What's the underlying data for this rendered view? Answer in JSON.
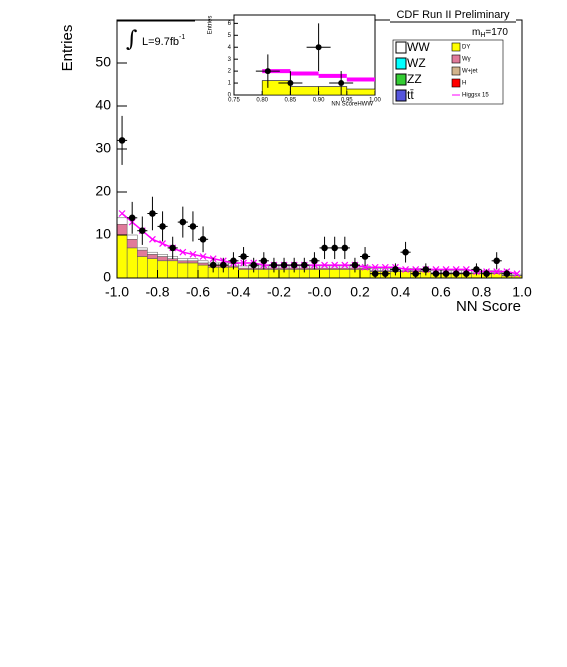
{
  "chart_data": {
    "type": "stacked_histogram",
    "title": "CDF Run II Preliminary",
    "mass_label": {
      "m": "m",
      "sub": "H",
      "rest": "=170"
    },
    "lumi_label": {
      "text": "L=9.7fb",
      "sup": "-1"
    },
    "integral": "∫",
    "ylabel": "Entries",
    "xlabel": "NN Score",
    "xlim": [
      -1.0,
      1.0
    ],
    "ylim": [
      0,
      60
    ],
    "xticks": [
      {
        "value": -1.0,
        "label": "-1.0"
      },
      {
        "value": -0.8,
        "label": "-0.8"
      },
      {
        "value": -0.6,
        "label": "-0.6"
      },
      {
        "value": -0.4,
        "label": "-0.4"
      },
      {
        "value": -0.2,
        "label": "-0.2"
      },
      {
        "value": 0,
        "label": "-0.0"
      },
      {
        "value": 0.2,
        "label": "0.2"
      },
      {
        "value": 0.4,
        "label": "0.4"
      },
      {
        "value": 0.6,
        "label": "0.6"
      },
      {
        "value": 0.8,
        "label": "0.8"
      },
      {
        "value": 1.0,
        "label": "1.0"
      }
    ],
    "yticks": [
      0,
      10,
      20,
      30,
      40,
      50
    ],
    "bins": [
      -1.0,
      -0.95,
      -0.9,
      -0.85,
      -0.8,
      -0.75,
      -0.7,
      -0.65,
      -0.6,
      -0.55,
      -0.5,
      -0.45,
      -0.4,
      -0.35,
      -0.3,
      -0.25,
      -0.2,
      -0.15,
      -0.1,
      -0.05,
      0,
      0.05,
      0.1,
      0.15,
      0.2,
      0.25,
      0.3,
      0.35,
      0.4,
      0.45,
      0.5,
      0.55,
      0.6,
      0.65,
      0.7,
      0.75,
      0.8,
      0.85,
      0.9,
      0.95,
      1.0
    ],
    "series": [
      {
        "name": "DY",
        "color": "#ffff00",
        "values": [
          10,
          7,
          5,
          4.5,
          4,
          4,
          3.5,
          3.5,
          3,
          2.5,
          2.5,
          2.5,
          2,
          2,
          2,
          2,
          2,
          2,
          2,
          2,
          2,
          2,
          2,
          2,
          2,
          1.5,
          1.5,
          1.5,
          1.5,
          1.5,
          1.5,
          1,
          1,
          1,
          1,
          1,
          1,
          1,
          0.5,
          0.5
        ]
      },
      {
        "name": "Wγ",
        "color": "#e07a9a",
        "values": [
          2.5,
          2,
          1.5,
          1,
          1,
          0.5,
          0.5,
          0.5,
          0.5,
          0.5,
          0.5,
          0.3,
          0.3,
          0.3,
          0.3,
          0.3,
          0.3,
          0.3,
          0.3,
          0.3,
          0.3,
          0.3,
          0.3,
          0.3,
          0.3,
          0.2,
          0.2,
          0.2,
          0.2,
          0.2,
          0.2,
          0.2,
          0.2,
          0.2,
          0.2,
          0.2,
          0.2,
          0.2,
          0.2,
          0.1
        ]
      },
      {
        "name": "WW",
        "color": "#ffffff",
        "values": [
          1.5,
          1,
          0.5,
          0.5,
          0.5,
          0.5,
          0.5,
          0.5,
          0.5,
          0.5,
          0.5,
          0.5,
          0.5,
          0.5,
          0.5,
          0.5,
          0.5,
          0.5,
          0.5,
          0.5,
          0.5,
          0.5,
          0.5,
          0.5,
          0.5,
          0.5,
          0.5,
          0.5,
          0.5,
          0.5,
          0.5,
          0.5,
          0.5,
          0.5,
          0.5,
          0.5,
          0.5,
          0.5,
          0.5,
          0.3
        ]
      }
    ],
    "signal": {
      "name": "Higgsx 15",
      "color": "#ff00ff",
      "values": [
        15,
        13,
        11,
        9,
        8,
        7,
        6,
        5.5,
        5,
        4.5,
        4,
        3.5,
        3.5,
        3.5,
        3,
        3,
        3,
        3,
        3,
        3,
        3,
        3,
        3,
        3,
        2.5,
        2.5,
        2.5,
        2.5,
        2,
        2,
        2,
        2,
        2,
        2,
        2,
        1.5,
        1.5,
        1.5,
        1.5,
        1
      ]
    },
    "data_points": {
      "values": [
        32,
        14,
        11,
        15,
        12,
        7,
        13,
        12,
        9,
        3,
        3,
        4,
        5,
        3,
        4,
        3,
        3,
        3,
        3,
        4,
        7,
        7,
        7,
        3,
        5,
        1,
        1,
        2,
        6,
        1,
        2,
        1,
        1,
        1,
        1,
        2,
        1,
        4,
        1,
        null
      ],
      "errors": [
        5.7,
        3.7,
        3.3,
        3.9,
        3.5,
        2.6,
        3.6,
        3.5,
        3,
        1.7,
        1.7,
        2,
        2.2,
        1.7,
        2,
        1.7,
        1.7,
        1.7,
        1.7,
        2,
        2.6,
        2.6,
        2.6,
        1.7,
        2.2,
        1,
        1,
        1.4,
        2.4,
        1,
        1.4,
        1,
        1,
        1,
        1,
        1.4,
        1,
        2,
        1,
        null
      ]
    },
    "legend": [
      {
        "name": "WW",
        "color": "#ffffff",
        "column": 0
      },
      {
        "name": "WZ",
        "color": "#00ffff",
        "column": 0
      },
      {
        "name": "ZZ",
        "color": "#33cc33",
        "column": 0
      },
      {
        "name": "tt̄",
        "color": "#5555dd",
        "column": 0
      },
      {
        "name": "DY",
        "color": "#ffff00",
        "column": 1
      },
      {
        "name": "Wγ",
        "color": "#e07a9a",
        "column": 1
      },
      {
        "name": "W+jet",
        "color": "#d2b48c",
        "column": 1
      },
      {
        "name": "H",
        "color": "#ff0000",
        "column": 1
      },
      {
        "name": "Higgsx 15",
        "color": "#ff00ff",
        "column": 1,
        "line": true
      }
    ],
    "inset": {
      "ylabel": "Entries",
      "xlabel": "NN ScoreHWW",
      "xlim": [
        0.75,
        1.0
      ],
      "ylim": [
        0,
        6.7
      ],
      "xticks": [
        {
          "value": 0.75,
          "label": "0.75"
        },
        {
          "value": 0.8,
          "label": "0.80"
        },
        {
          "value": 0.85,
          "label": "0.85"
        },
        {
          "value": 0.9,
          "label": "0.90"
        },
        {
          "value": 0.95,
          "label": "0.95"
        },
        {
          "value": 1.0,
          "label": "1.00"
        }
      ],
      "yticks": [
        0,
        1,
        2,
        3,
        4,
        5,
        6
      ],
      "bins": [
        0.75,
        0.8,
        0.85,
        0.9,
        0.95,
        1.0
      ],
      "background": {
        "color": "#ffff00",
        "values": [
          0,
          1.2,
          0.7,
          0.7,
          0.5
        ]
      },
      "signal": {
        "color": "#ff00ff",
        "values": [
          null,
          2,
          1.8,
          1.6,
          1.3
        ]
      },
      "points": {
        "x": [
          0.81,
          0.85,
          0.9,
          0.94
        ],
        "values": [
          2,
          1,
          4,
          1
        ],
        "errors": [
          1.4,
          1,
          2,
          1
        ]
      }
    }
  }
}
